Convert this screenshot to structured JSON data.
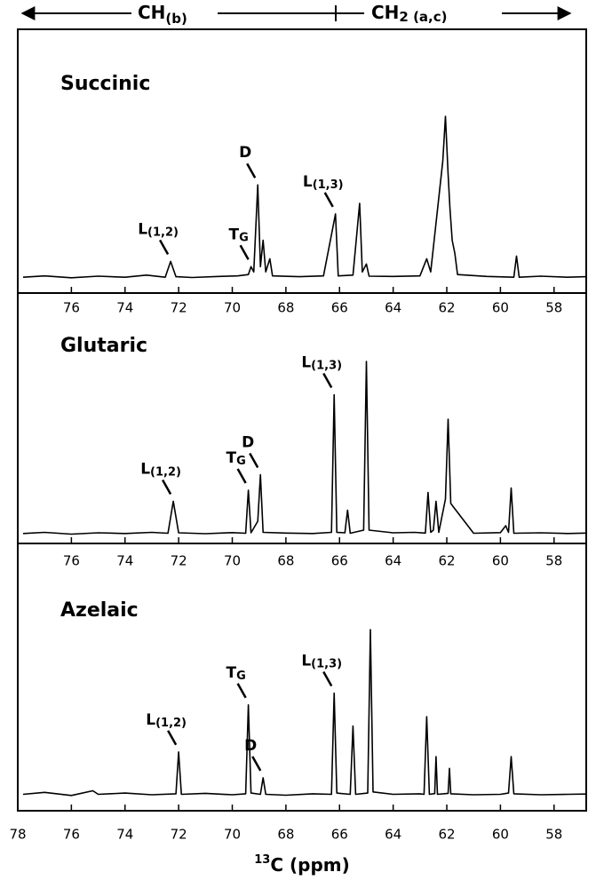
{
  "header": {
    "left": "CH",
    "left_sub": "(b)",
    "right": "CH",
    "right_sub": "2 (a,c)"
  },
  "chart_data": [
    {
      "type": "line",
      "title": "Succinic",
      "xlim": [
        78,
        56.8
      ],
      "ylim": [
        0,
        100
      ],
      "xticks": [
        76,
        74,
        72,
        70,
        68,
        66,
        64,
        62,
        60,
        58
      ],
      "x": [
        77.8,
        77,
        76,
        75,
        74,
        73.2,
        72.5,
        72.3,
        72.1,
        71.5,
        70.5,
        69.8,
        69.4,
        69.3,
        69.2,
        69.05,
        68.95,
        68.85,
        68.75,
        68.6,
        68.5,
        67.5,
        66.6,
        66.15,
        66.05,
        65.5,
        65.25,
        65.15,
        65.0,
        64.9,
        64,
        63,
        62.75,
        62.6,
        62.15,
        62.05,
        61.95,
        61.88,
        61.8,
        61.7,
        61.6,
        60.5,
        59.5,
        59.4,
        59.3,
        58.5,
        57.5,
        56.8
      ],
      "values": [
        6,
        6.5,
        5.8,
        6.4,
        6,
        6.8,
        6,
        12,
        6.2,
        5.9,
        6.3,
        6.5,
        7,
        10,
        8,
        41,
        10,
        20,
        8,
        13,
        6.5,
        6.2,
        6.5,
        30,
        6.5,
        6.8,
        34,
        8,
        11,
        6.4,
        6.3,
        6.5,
        13,
        8,
        50,
        67,
        45,
        32,
        20,
        15,
        7,
        6.3,
        6,
        14,
        6,
        6.4,
        6,
        6.2
      ],
      "annotations": [
        {
          "label": "L",
          "sub": "(1,2)",
          "x": 72.3
        },
        {
          "label": "T",
          "sub": "G",
          "x": 69.3
        },
        {
          "label": "D",
          "sub": "",
          "x": 69.05
        },
        {
          "label": "L",
          "sub": "(1,3)",
          "x": 66.15
        }
      ]
    },
    {
      "type": "line",
      "title": "Glutaric",
      "xlim": [
        78,
        56.8
      ],
      "ylim": [
        0,
        100
      ],
      "xticks": [
        76,
        74,
        72,
        70,
        68,
        66,
        64,
        62,
        60,
        58
      ],
      "x": [
        77.8,
        77,
        76,
        75,
        74,
        73,
        72.4,
        72.2,
        72.0,
        71,
        70,
        69.5,
        69.4,
        69.3,
        69.05,
        68.95,
        68.85,
        68,
        67,
        66.3,
        66.2,
        66.1,
        65.8,
        65.7,
        65.6,
        65.1,
        65.0,
        64.9,
        64,
        63.2,
        62.8,
        62.7,
        62.6,
        62.5,
        62.4,
        62.3,
        62.05,
        61.95,
        61.85,
        61,
        60,
        59.8,
        59.7,
        59.6,
        59.5,
        58.5,
        57.5,
        56.8
      ],
      "values": [
        4.5,
        5,
        4.2,
        4.8,
        4.5,
        5,
        4.6,
        19,
        4.8,
        4.4,
        4.9,
        4.6,
        24,
        4.8,
        10,
        31,
        5,
        4.7,
        4.5,
        5,
        67,
        5,
        4.8,
        15,
        4.6,
        6,
        82,
        6,
        4.8,
        5,
        4.7,
        23,
        5,
        6,
        19,
        5,
        20,
        56,
        18,
        4.6,
        4.9,
        8,
        5,
        25,
        4.6,
        4.8,
        4.5,
        4.7
      ],
      "annotations": [
        {
          "label": "L",
          "sub": "(1,2)",
          "x": 72.2
        },
        {
          "label": "T",
          "sub": "G",
          "x": 69.4
        },
        {
          "label": "D",
          "sub": "",
          "x": 68.95
        },
        {
          "label": "L",
          "sub": "(1,3)",
          "x": 66.2
        }
      ]
    },
    {
      "type": "line",
      "title": "Azelaic",
      "xlim": [
        78,
        56.8
      ],
      "ylim": [
        0,
        100
      ],
      "xticks": [
        78,
        76,
        74,
        72,
        70,
        68,
        66,
        64,
        62,
        60,
        58
      ],
      "xlabel": {
        "sup": "13",
        "text": "C  (ppm)"
      },
      "x": [
        77.8,
        77,
        76,
        75.2,
        75,
        74,
        73,
        72.1,
        72.0,
        71.9,
        71,
        70,
        69.5,
        69.4,
        69.3,
        68.95,
        68.85,
        68.75,
        68,
        67,
        66.3,
        66.2,
        66.1,
        65.6,
        65.5,
        65.4,
        64.95,
        64.85,
        64.75,
        64,
        63,
        62.85,
        62.75,
        62.65,
        62.45,
        62.4,
        62.35,
        61.95,
        61.9,
        61.85,
        61,
        60,
        59.7,
        59.6,
        59.5,
        58.5,
        57.5,
        56.8
      ],
      "values": [
        7,
        7.8,
        6.5,
        8.5,
        7,
        7.5,
        6.8,
        7.2,
        25,
        7,
        7.4,
        6.8,
        7.2,
        45,
        7.5,
        7,
        14,
        7,
        6.6,
        7.2,
        7,
        50,
        7.5,
        7,
        36,
        7,
        7.5,
        77,
        8,
        7,
        7.2,
        7,
        40,
        7,
        7.3,
        23,
        7,
        7.4,
        18,
        7.2,
        6.8,
        7,
        7.5,
        23,
        7.2,
        6.8,
        7,
        7.1
      ],
      "annotations": [
        {
          "label": "L",
          "sub": "(1,2)",
          "x": 72.0
        },
        {
          "label": "T",
          "sub": "G",
          "x": 69.4
        },
        {
          "label": "D",
          "sub": "",
          "x": 68.85
        },
        {
          "label": "L",
          "sub": "(1,3)",
          "x": 66.2
        }
      ]
    }
  ]
}
